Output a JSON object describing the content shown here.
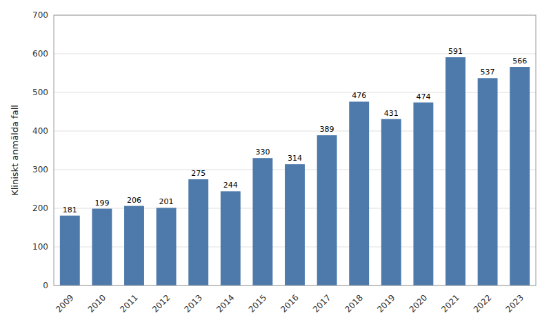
{
  "chart_data": {
    "type": "bar",
    "ylabel": "Kliniskt anmälda fall",
    "categories": [
      "2009",
      "2010",
      "2011",
      "2012",
      "2013",
      "2014",
      "2015",
      "2016",
      "2017",
      "2018",
      "2019",
      "2020",
      "2021",
      "2022",
      "2023"
    ],
    "values": [
      181,
      199,
      206,
      201,
      275,
      244,
      330,
      314,
      389,
      476,
      431,
      474,
      591,
      537,
      566
    ],
    "color": "#4d7aab",
    "ylim": [
      0,
      700
    ],
    "yticks": [
      0,
      100,
      200,
      300,
      400,
      500,
      600,
      700
    ],
    "grid": true,
    "data_labels": true
  }
}
